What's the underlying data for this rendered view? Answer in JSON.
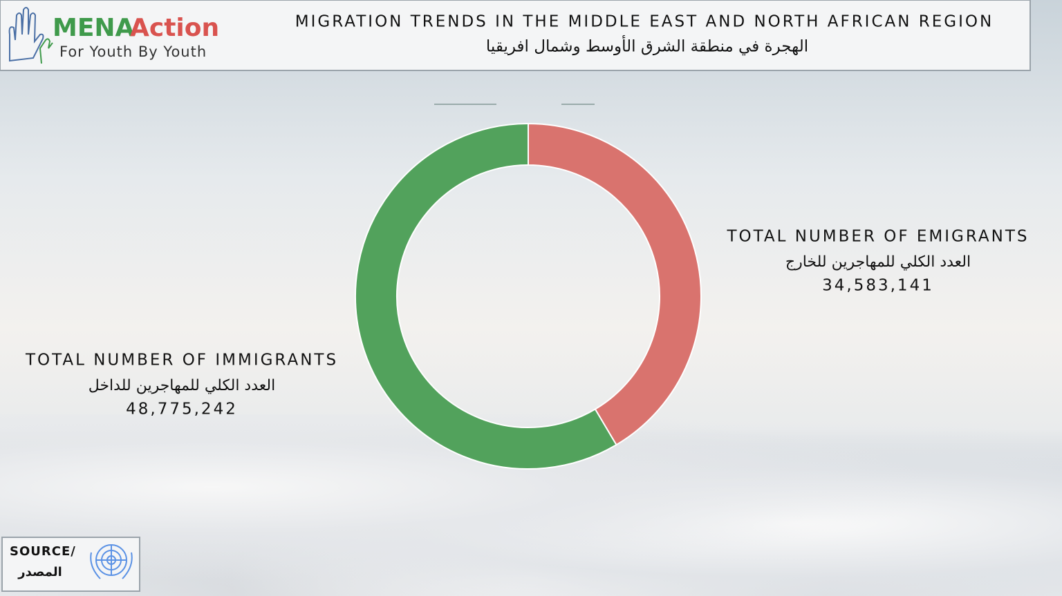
{
  "header": {
    "logo_mena": "MENA",
    "logo_action": "Action",
    "logo_tagline": "For Youth By Youth"
  },
  "chart_data": {
    "type": "pie",
    "donut": true,
    "title": "MIGRATION TRENDS IN THE MIDDLE EAST AND NORTH AFRICAN REGION",
    "subtitle": "الهجرة في منطقة الشرق الأوسط وشمال افريقيا",
    "categories": [
      "TOTAL NUMBER OF EMIGRANTS",
      "TOTAL NUMBER OF IMMIGRANTS"
    ],
    "categories_ar": [
      "العدد الكلي للمهاجرين للخارج",
      "العدد الكلي للمهاجرين للداخل"
    ],
    "values": [
      34583141,
      48775242
    ],
    "value_labels": [
      "34,583,141",
      "48,775,242"
    ],
    "colors": [
      "#d9736e",
      "#52a25c"
    ]
  },
  "source": {
    "label": "SOURCE/",
    "label_ar": "المصدر"
  }
}
